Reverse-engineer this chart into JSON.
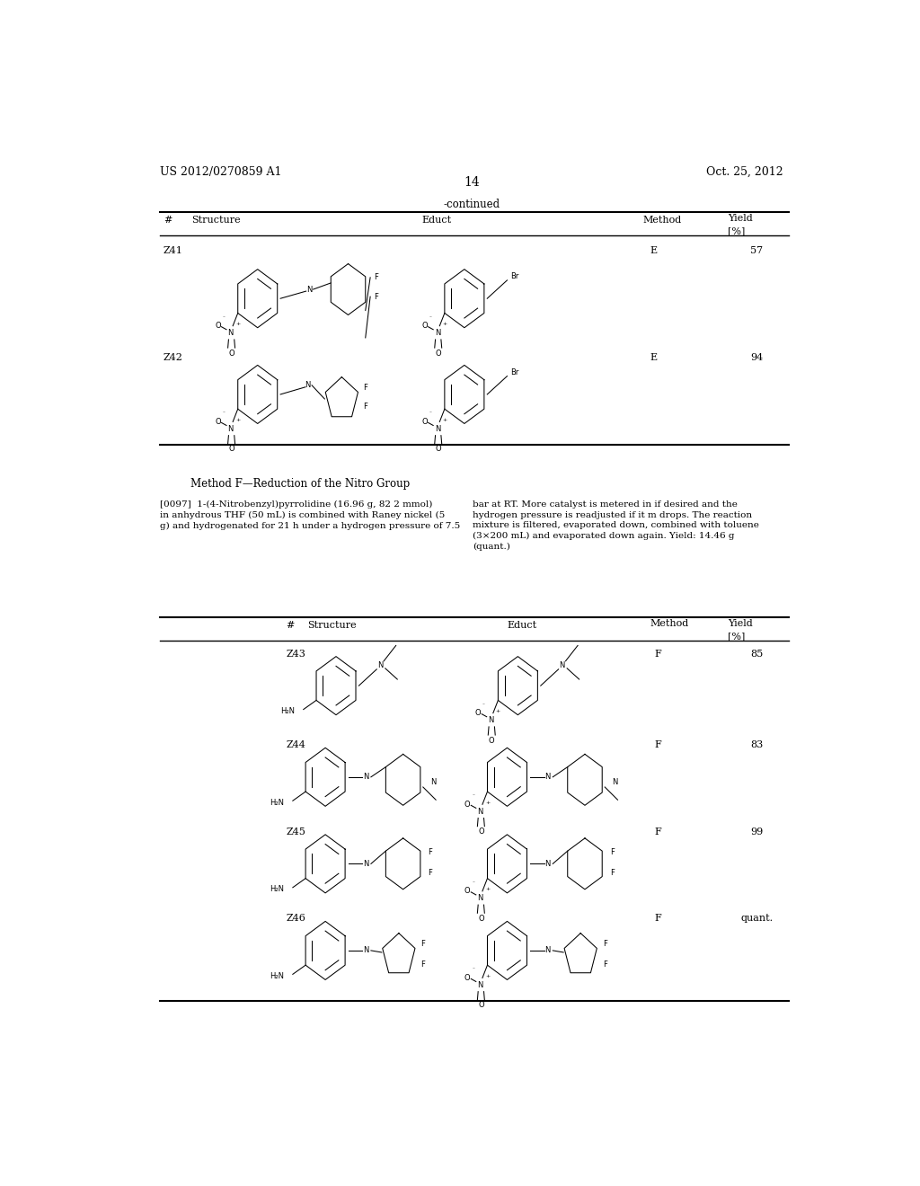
{
  "bg": "#ffffff",
  "header_left": "US 2012/0270859 A1",
  "header_right": "Oct. 25, 2012",
  "page_num": "14",
  "continued": "-continued",
  "t1_rows": [
    {
      "id": "Z41",
      "method": "E",
      "yield": "57"
    },
    {
      "id": "Z42",
      "method": "E",
      "yield": "94"
    }
  ],
  "method_title": "Method F—Reduction of the Nitro Group",
  "para_tag": "[0097]",
  "left_para": "1-(4-Nitrobenzyl)pyrrolidine (16.96 g, 82 2 mmol)\nin anhydrous THF (50 mL) is combined with Raney nickel (5\ng) and hydrogenated for 21 h under a hydrogen pressure of 7.5",
  "right_para": "bar at RT. More catalyst is metered in if desired and the\nhydrogen pressure is readjusted if it m drops. The reaction\nmixture is filtered, evaporated down, combined with toluene\n(3×200 mL) and evaporated down again. Yield: 14.46 g\n(quant.)",
  "t2_rows": [
    {
      "id": "Z43",
      "method": "F",
      "yield": "85"
    },
    {
      "id": "Z44",
      "method": "F",
      "yield": "83"
    },
    {
      "id": "Z45",
      "method": "F",
      "yield": "99"
    },
    {
      "id": "Z46",
      "method": "F",
      "yield": "quant."
    }
  ],
  "lw": 0.75,
  "r_arom": 0.032,
  "r_6ring": 0.028,
  "r_5ring": 0.024
}
